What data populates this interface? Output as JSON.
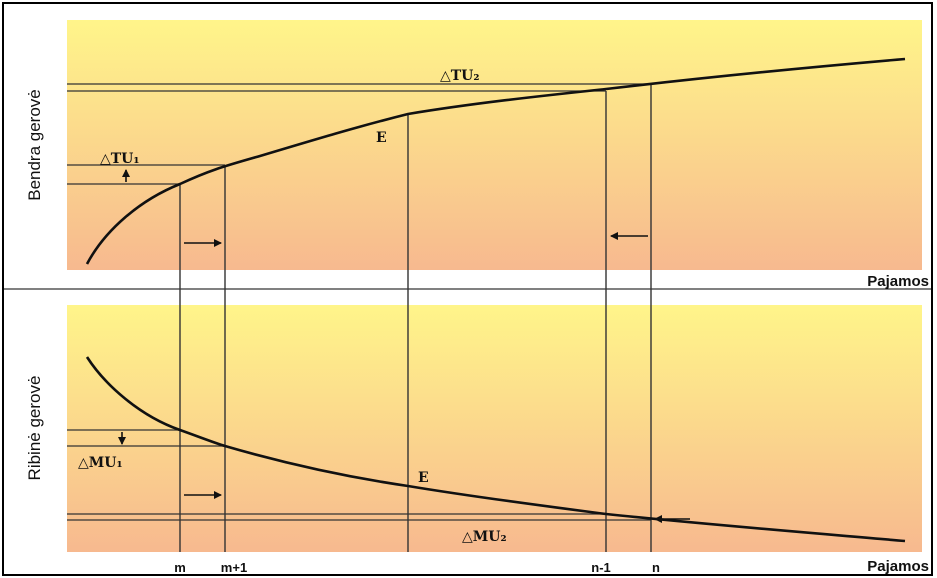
{
  "top_panel": {
    "y_label": "Bendra gerovė",
    "x_label": "Pajamos",
    "label_delta_tu1": "△TU₁",
    "label_delta_tu2": "△TU₂",
    "label_e": "E"
  },
  "bottom_panel": {
    "y_label": "Ribinė gerovė",
    "x_label": "Pajamos",
    "label_delta_mu1": "△MU₁",
    "label_delta_mu2": "△MU₂",
    "label_e": "E"
  },
  "x_ticks": [
    "m",
    "m+1",
    "n-1",
    "n"
  ],
  "colors": {
    "panel_top": "#fff58a",
    "panel_bottom": "#f7b98f",
    "curve": "#111111",
    "line": "#333333",
    "border": "#000000"
  }
}
